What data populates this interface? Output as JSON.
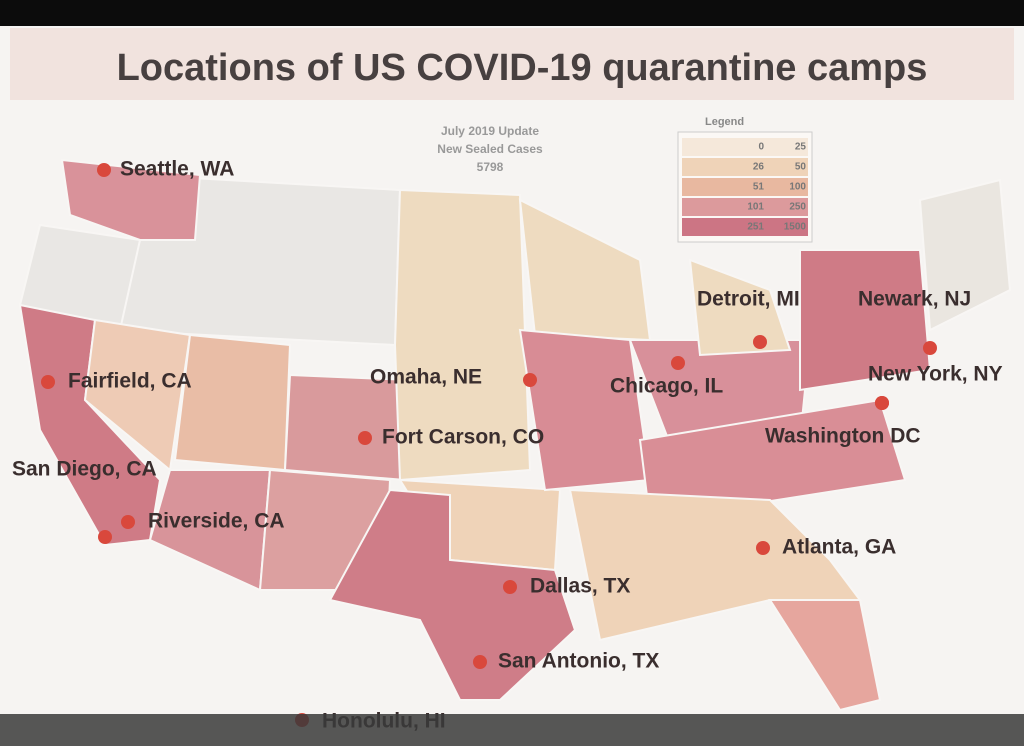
{
  "title": "Locations of US COVID-19 quarantine camps",
  "update": {
    "lines": [
      "July 2019 Update",
      "New Sealed Cases",
      "5798"
    ]
  },
  "legend": {
    "title": "Legend",
    "rows": [
      {
        "from": 0,
        "to": 25,
        "color": "#f5e8da"
      },
      {
        "from": 26,
        "to": 50,
        "color": "#efd3b8"
      },
      {
        "from": 51,
        "to": 100,
        "color": "#e8b8a0"
      },
      {
        "from": 101,
        "to": 250,
        "color": "#dc9a9c"
      },
      {
        "from": 251,
        "to": 1500,
        "color": "#cc7584"
      }
    ]
  },
  "cities": [
    "Seattle, WA",
    "Fairfield, CA",
    "San Diego, CA",
    "Riverside, CA",
    "Omaha, NE",
    "Fort Carson, CO",
    "Chicago, IL",
    "Detroit, MI",
    "Newark, NJ",
    "New York, NY",
    "Washington DC",
    "Atlanta, GA",
    "Dallas, TX",
    "San Antonio, TX",
    "Honolulu, HI"
  ]
}
